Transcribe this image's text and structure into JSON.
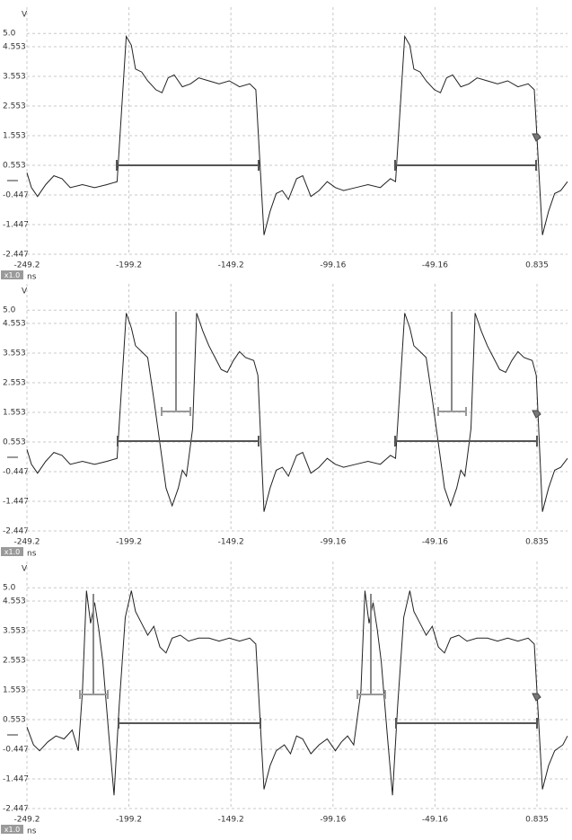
{
  "chart_data": [
    {
      "type": "line",
      "y_unit": "V",
      "x_unit": "ns",
      "zoom_label": "x1.0",
      "xlim": [
        -249.2,
        15.8
      ],
      "ylim": [
        -2.447,
        5.8
      ],
      "xticks": [
        -249.2,
        -199.2,
        -149.2,
        -99.16,
        -49.16,
        0.835
      ],
      "yticks": [
        {
          "value": 5,
          "label": "5.0"
        },
        4.553,
        3.553,
        2.553,
        1.553,
        0.553,
        -0.447,
        -1.447,
        -2.447
      ],
      "grid": true,
      "x": [
        -249.2,
        -247,
        -244,
        -240,
        -236,
        -232,
        -228,
        -222,
        -216,
        -210,
        -205,
        -200.5,
        -198,
        -196,
        -193,
        -190,
        -186,
        -183,
        -180,
        -177,
        -173,
        -169,
        -165,
        -160,
        -155,
        -150,
        -145,
        -140,
        -137,
        -133,
        -130,
        -127,
        -124,
        -121,
        -117,
        -114,
        -110,
        -106,
        -102,
        -98,
        -94,
        -88,
        -82,
        -76,
        -71,
        -68.5,
        -64,
        -61.5,
        -59.5,
        -56.5,
        -53.5,
        -49.5,
        -46.5,
        -43.5,
        -40.5,
        -36.5,
        -32.5,
        -28.5,
        -23.5,
        -18.5,
        -13.5,
        -8.5,
        -3.5,
        -0.5,
        3.5,
        6.5,
        9.5,
        12.5,
        15.8
      ],
      "series": [
        {
          "color": "#222222",
          "values": [
            0.3,
            -0.2,
            -0.5,
            -0.1,
            0.2,
            0.1,
            -0.2,
            -0.1,
            -0.2,
            -0.1,
            0.0,
            4.9,
            4.6,
            3.8,
            3.7,
            3.4,
            3.1,
            3.0,
            3.5,
            3.6,
            3.2,
            3.3,
            3.5,
            3.4,
            3.3,
            3.4,
            3.2,
            3.3,
            3.1,
            -1.8,
            -1.0,
            -0.4,
            -0.3,
            -0.6,
            0.1,
            0.2,
            -0.5,
            -0.3,
            0.0,
            -0.2,
            -0.3,
            -0.2,
            -0.1,
            -0.2,
            0.1,
            0.0,
            4.9,
            4.6,
            3.8,
            3.7,
            3.4,
            3.1,
            3.0,
            3.5,
            3.6,
            3.2,
            3.3,
            3.5,
            3.4,
            3.3,
            3.4,
            3.2,
            3.3,
            3.1,
            -1.8,
            -1.0,
            -0.4,
            -0.3,
            0.0
          ]
        }
      ]
    },
    {
      "type": "line",
      "y_unit": "V",
      "x_unit": "ns",
      "zoom_label": "x1.0",
      "xlim": [
        -249.2,
        15.8
      ],
      "ylim": [
        -2.447,
        5.8
      ],
      "xticks": [
        -249.2,
        -199.2,
        -149.2,
        -99.16,
        -49.16,
        0.835
      ],
      "yticks": [
        {
          "value": 5,
          "label": "5.0"
        },
        4.553,
        3.553,
        2.553,
        1.553,
        0.553,
        -0.447,
        -1.447,
        -2.447
      ],
      "grid": true,
      "x": [
        -249.2,
        -247,
        -244,
        -240,
        -236,
        -232,
        -228,
        -222,
        -216,
        -210,
        -205,
        -200.5,
        -198,
        -196,
        -193,
        -190,
        -187,
        -184,
        -181,
        -178,
        -175,
        -173,
        -171,
        -168,
        -166,
        -163,
        -160,
        -157,
        -154,
        -151,
        -148,
        -145,
        -142,
        -138,
        -136,
        -133,
        -130,
        -127,
        -124,
        -121,
        -117,
        -114,
        -110,
        -106,
        -102,
        -98,
        -94,
        -88,
        -82,
        -76,
        -71,
        -68.5,
        -64,
        -61.5,
        -59.5,
        -56.5,
        -53.5,
        -50.5,
        -47.5,
        -44.5,
        -41.5,
        -38.5,
        -36.5,
        -34.5,
        -31.5,
        -29.5,
        -26.5,
        -23.5,
        -20.5,
        -17.5,
        -14.5,
        -11.5,
        -8.5,
        -5.5,
        -1.5,
        0.5,
        3.5,
        6.5,
        9.5,
        12.5,
        15.8
      ],
      "series": [
        {
          "color": "#222222",
          "values": [
            0.3,
            -0.2,
            -0.5,
            -0.1,
            0.2,
            0.1,
            -0.2,
            -0.1,
            -0.2,
            -0.1,
            0.0,
            4.9,
            4.4,
            3.8,
            3.6,
            3.4,
            2.0,
            0.5,
            -1.0,
            -1.6,
            -1.0,
            -0.4,
            -0.6,
            1.0,
            4.9,
            4.3,
            3.8,
            3.4,
            3.0,
            2.9,
            3.3,
            3.6,
            3.4,
            3.3,
            2.8,
            -1.8,
            -1.0,
            -0.4,
            -0.3,
            -0.6,
            0.1,
            0.2,
            -0.5,
            -0.3,
            0.0,
            -0.2,
            -0.3,
            -0.2,
            -0.1,
            -0.2,
            0.1,
            0.0,
            4.9,
            4.4,
            3.8,
            3.6,
            3.4,
            2.0,
            0.5,
            -1.0,
            -1.6,
            -1.0,
            -0.4,
            -0.6,
            1.0,
            4.9,
            4.3,
            3.8,
            3.4,
            3.0,
            2.9,
            3.3,
            3.6,
            3.4,
            3.3,
            2.8,
            -1.8,
            -1.0,
            -0.4,
            -0.3,
            0.0
          ]
        }
      ]
    },
    {
      "type": "line",
      "y_unit": "V",
      "x_unit": "ns",
      "zoom_label": "x1.0",
      "xlim": [
        -249.2,
        15.8
      ],
      "ylim": [
        -2.447,
        5.8
      ],
      "xticks": [
        -249.2,
        -199.2,
        -149.2,
        -99.16,
        -49.16,
        0.835
      ],
      "yticks": [
        {
          "value": 5,
          "label": "5.0"
        },
        4.553,
        3.553,
        2.553,
        1.553,
        0.553,
        -0.447,
        -1.447,
        -2.447
      ],
      "grid": true,
      "x": [
        -249.2,
        -246,
        -243,
        -239,
        -235,
        -231,
        -227,
        -224,
        -222,
        -220,
        -218,
        -216,
        -214,
        -212,
        -209,
        -206.5,
        -204,
        -201,
        -198,
        -196,
        -193,
        -190,
        -187,
        -184,
        -181,
        -178,
        -174,
        -170,
        -165,
        -160,
        -155,
        -150,
        -145,
        -140,
        -137,
        -133,
        -130,
        -127,
        -123,
        -120,
        -117,
        -114,
        -110,
        -106,
        -102,
        -98,
        -95,
        -92,
        -89,
        -85.5,
        -83.5,
        -81.5,
        -79.5,
        -77.5,
        -75.5,
        -72.5,
        -70,
        -67.5,
        -64.5,
        -61.5,
        -59.5,
        -56.5,
        -53.5,
        -50.5,
        -47.5,
        -44.5,
        -41.5,
        -37.5,
        -33.5,
        -28.5,
        -23.5,
        -18.5,
        -13.5,
        -8.5,
        -3.5,
        -0.5,
        3.5,
        6.5,
        9.5,
        13.5,
        15.8
      ],
      "series": [
        {
          "color": "#222222",
          "values": [
            0.3,
            -0.3,
            -0.5,
            -0.2,
            0.0,
            -0.1,
            0.2,
            -0.5,
            1.5,
            4.9,
            3.8,
            4.5,
            3.6,
            2.5,
            0.0,
            -2.0,
            1.0,
            4.0,
            4.9,
            4.2,
            3.8,
            3.4,
            3.7,
            3.0,
            2.8,
            3.3,
            3.4,
            3.2,
            3.3,
            3.3,
            3.2,
            3.3,
            3.2,
            3.3,
            3.1,
            -1.8,
            -1.0,
            -0.5,
            -0.3,
            -0.6,
            0.0,
            -0.1,
            -0.6,
            -0.3,
            -0.1,
            -0.5,
            -0.2,
            0.0,
            -0.3,
            1.5,
            4.9,
            3.8,
            4.5,
            3.6,
            2.5,
            0.0,
            -2.0,
            1.0,
            4.0,
            4.9,
            4.2,
            3.8,
            3.4,
            3.7,
            3.0,
            2.8,
            3.3,
            3.4,
            3.2,
            3.3,
            3.3,
            3.2,
            3.3,
            3.2,
            3.3,
            3.1,
            -1.8,
            -1.0,
            -0.5,
            -0.3,
            0.0
          ]
        }
      ]
    }
  ]
}
